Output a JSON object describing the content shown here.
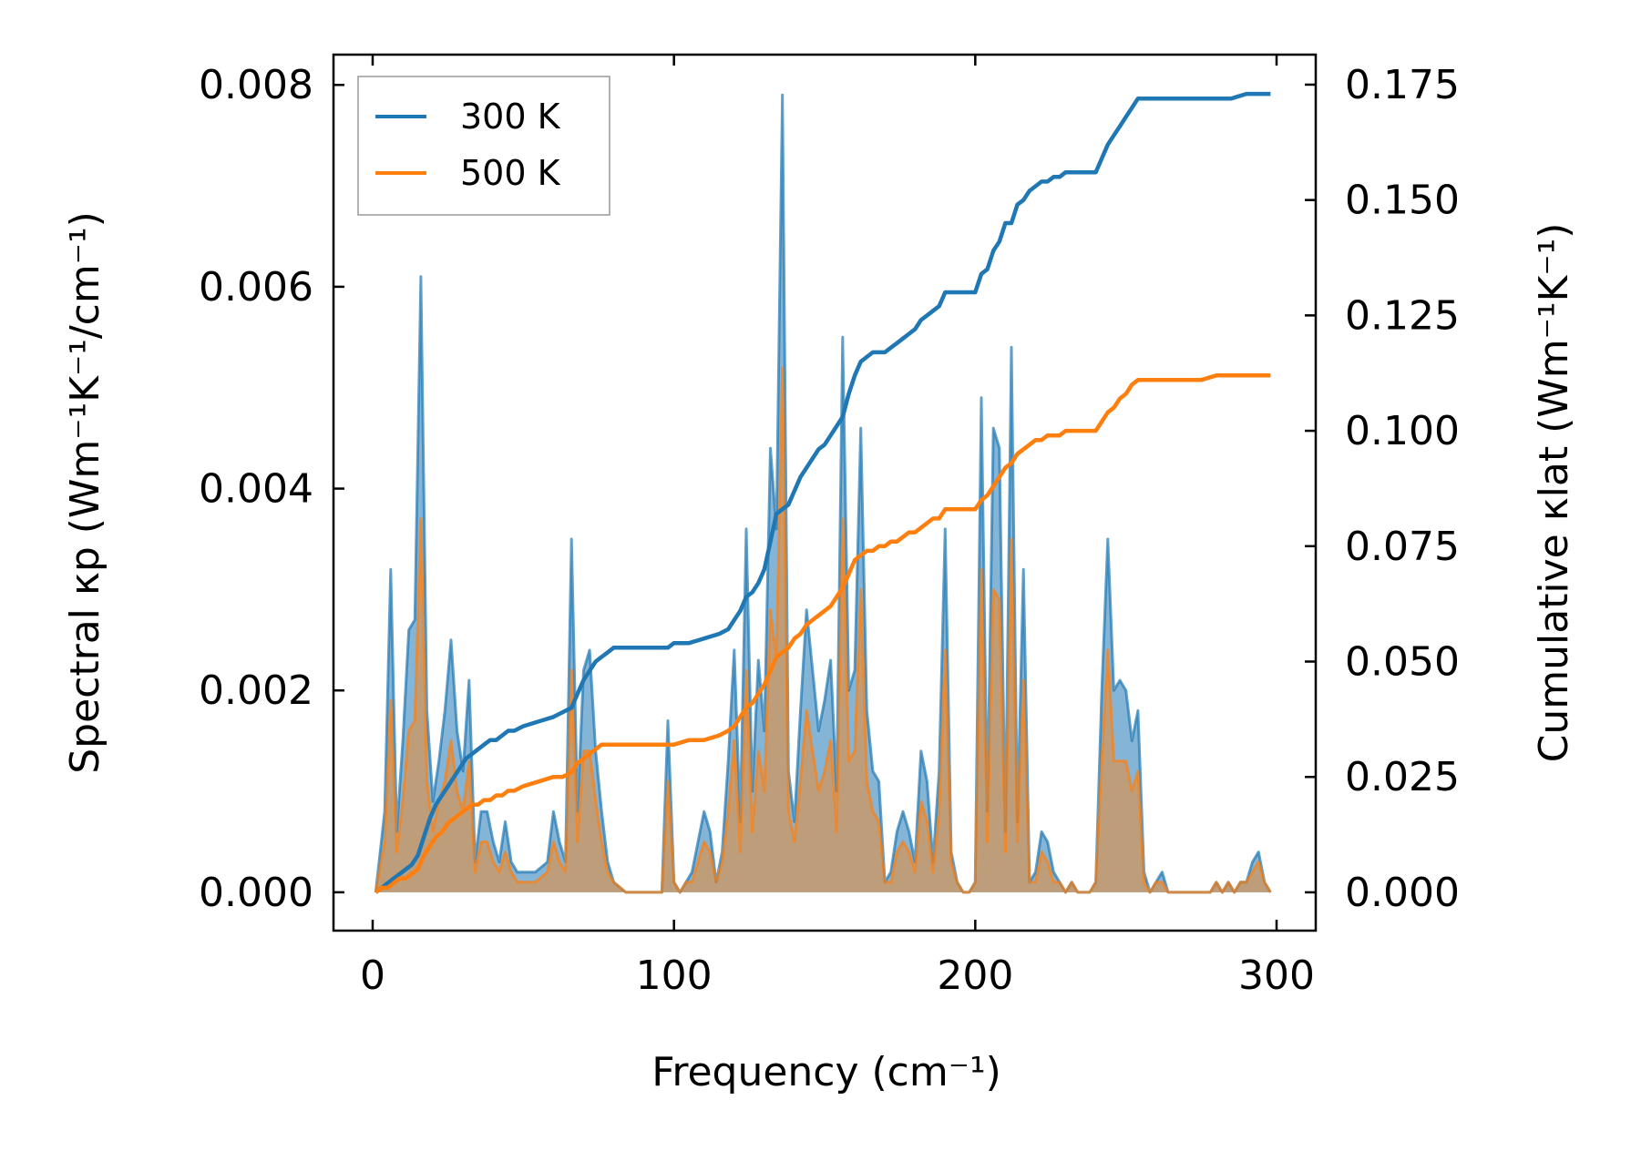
{
  "chart_data": {
    "type": "line",
    "xlabel": "Frequency (cm⁻¹)",
    "ylabel_left": "Spectral κp (Wm⁻¹K⁻¹/cm⁻¹)",
    "ylabel_right": "Cumulative κlat (Wm⁻¹K⁻¹)",
    "xlim": [
      -13,
      313
    ],
    "ylim_left": [
      -0.00038,
      0.0083
    ],
    "ylim_right": [
      -0.0083,
      0.1815
    ],
    "xticks": [
      0,
      100,
      200,
      300
    ],
    "xtick_labels": [
      "0",
      "100",
      "200",
      "300"
    ],
    "yticks_left": [
      0.0,
      0.002,
      0.004,
      0.006,
      0.008
    ],
    "ytick_labels_left": [
      "0.000",
      "0.002",
      "0.004",
      "0.006",
      "0.008"
    ],
    "yticks_right": [
      0.0,
      0.025,
      0.05,
      0.075,
      0.1,
      0.125,
      0.15,
      0.175
    ],
    "ytick_labels_right": [
      "0.000",
      "0.025",
      "0.050",
      "0.075",
      "0.100",
      "0.125",
      "0.150",
      "0.175"
    ],
    "legend": {
      "placement": "top-left",
      "entries": [
        "300 K",
        "500 K"
      ]
    },
    "colors": {
      "s300": "#1f77b4",
      "s500": "#ff7f0e",
      "fill500": "#c89a6a"
    },
    "grid": false,
    "spectral": [
      {
        "name": "300 K",
        "axis": "left",
        "fill": true,
        "x": [
          1,
          4,
          6,
          8,
          10,
          12,
          14,
          16,
          18,
          20,
          22,
          24,
          26,
          28,
          30,
          32,
          34,
          36,
          38,
          40,
          42,
          44,
          46,
          48,
          50,
          54,
          58,
          60,
          62,
          64,
          66,
          68,
          70,
          72,
          74,
          76,
          78,
          80,
          84,
          88,
          92,
          96,
          98,
          100,
          102,
          104,
          106,
          110,
          112,
          114,
          116,
          118,
          120,
          122,
          124,
          126,
          128,
          130,
          132,
          134,
          136,
          138,
          140,
          142,
          144,
          146,
          148,
          150,
          152,
          154,
          156,
          158,
          160,
          162,
          164,
          166,
          168,
          170,
          172,
          174,
          176,
          178,
          180,
          182,
          184,
          186,
          188,
          190,
          192,
          194,
          196,
          198,
          200,
          202,
          204,
          206,
          208,
          210,
          212,
          214,
          216,
          218,
          220,
          222,
          224,
          226,
          228,
          230,
          232,
          234,
          236,
          238,
          240,
          242,
          244,
          246,
          248,
          250,
          252,
          254,
          256,
          258,
          260,
          262,
          264,
          266,
          270,
          274,
          278,
          280,
          282,
          284,
          286,
          288,
          290,
          292,
          294,
          296,
          298
        ],
        "y": [
          0,
          0.0008,
          0.0032,
          0.0006,
          0.0015,
          0.0026,
          0.0027,
          0.0061,
          0.0018,
          0.0009,
          0.0013,
          0.0018,
          0.0025,
          0.0016,
          0.0012,
          0.0021,
          0.0003,
          0.0008,
          0.0008,
          0.0005,
          0.0003,
          0.0007,
          0.0003,
          0.0002,
          0.0002,
          0.0002,
          0.0003,
          0.0008,
          0.0005,
          0.0003,
          0.0035,
          0.0008,
          0.0022,
          0.0024,
          0.0014,
          0.0008,
          0.0003,
          0.0001,
          0,
          0,
          0,
          0,
          0.0017,
          0.0001,
          0,
          0.0001,
          0.0002,
          0.0008,
          0.0006,
          0.0001,
          0.0004,
          0.0013,
          0.0024,
          0.0007,
          0.0036,
          0.001,
          0.0023,
          0.0016,
          0.0044,
          0.0036,
          0.0079,
          0.0012,
          0.0007,
          0.0018,
          0.0028,
          0.0022,
          0.0016,
          0.0019,
          0.0023,
          0.001,
          0.0055,
          0.002,
          0.0022,
          0.0046,
          0.0018,
          0.0012,
          0.0011,
          0.0001,
          0.0002,
          0.0006,
          0.0008,
          0.0006,
          0.0003,
          0.0014,
          0.0011,
          0.0003,
          0.0012,
          0.0036,
          0.0004,
          0.0001,
          0,
          0,
          0.0001,
          0.0049,
          0.0008,
          0.0046,
          0.0044,
          0.0006,
          0.0054,
          0.0007,
          0.0032,
          0.0001,
          0.0002,
          0.0006,
          0.0005,
          0.0002,
          0.0001,
          0,
          0.0001,
          0,
          0,
          0,
          0.0001,
          0.002,
          0.0035,
          0.002,
          0.0021,
          0.002,
          0.0015,
          0.0018,
          0.0002,
          0,
          0.0001,
          0.0002,
          0,
          0,
          0,
          0,
          0,
          0.0001,
          0,
          0.0001,
          0,
          0.0001,
          0.0001,
          0.0003,
          0.0004,
          0.0001,
          0
        ]
      },
      {
        "name": "500 K",
        "axis": "left",
        "fill": true,
        "x": [
          1,
          4,
          6,
          8,
          10,
          12,
          14,
          16,
          18,
          20,
          22,
          24,
          26,
          28,
          30,
          32,
          34,
          36,
          38,
          40,
          42,
          44,
          46,
          48,
          50,
          54,
          58,
          60,
          62,
          64,
          66,
          68,
          70,
          72,
          74,
          76,
          78,
          80,
          84,
          88,
          92,
          96,
          98,
          100,
          102,
          104,
          106,
          110,
          112,
          114,
          116,
          118,
          120,
          122,
          124,
          126,
          128,
          130,
          132,
          134,
          136,
          138,
          140,
          142,
          144,
          146,
          148,
          150,
          152,
          154,
          156,
          158,
          160,
          162,
          164,
          166,
          168,
          170,
          172,
          174,
          176,
          178,
          180,
          182,
          184,
          186,
          188,
          190,
          192,
          194,
          196,
          198,
          200,
          202,
          204,
          206,
          208,
          210,
          212,
          214,
          216,
          218,
          220,
          222,
          224,
          226,
          228,
          230,
          232,
          234,
          236,
          238,
          240,
          242,
          244,
          246,
          248,
          250,
          252,
          254,
          256,
          258,
          260,
          262,
          264,
          266,
          270,
          274,
          278,
          280,
          282,
          284,
          286,
          288,
          290,
          292,
          294,
          296,
          298
        ],
        "y": [
          0,
          0.0005,
          0.0019,
          0.0004,
          0.0009,
          0.0016,
          0.0017,
          0.0037,
          0.0011,
          0.0006,
          0.0009,
          0.0011,
          0.0015,
          0.001,
          0.0008,
          0.0013,
          0.0002,
          0.0005,
          0.0005,
          0.0003,
          0.0002,
          0.0004,
          0.0002,
          0.0001,
          0.0001,
          0.0001,
          0.0002,
          0.0005,
          0.0003,
          0.0002,
          0.0022,
          0.0005,
          0.0014,
          0.0014,
          0.0009,
          0.0005,
          0.0002,
          0.0001,
          0,
          0,
          0,
          0,
          0.0011,
          0.0001,
          0,
          0.0001,
          0.0001,
          0.0005,
          0.0004,
          0.0001,
          0.0003,
          0.0008,
          0.0015,
          0.0004,
          0.0022,
          0.0006,
          0.0014,
          0.001,
          0.0028,
          0.0023,
          0.0052,
          0.0008,
          0.0005,
          0.0011,
          0.0018,
          0.0014,
          0.001,
          0.0012,
          0.0015,
          0.0006,
          0.0037,
          0.0013,
          0.0014,
          0.003,
          0.0011,
          0.0008,
          0.0007,
          0.0001,
          0.0001,
          0.0004,
          0.0005,
          0.0004,
          0.0002,
          0.0009,
          0.0007,
          0.0002,
          0.0008,
          0.0024,
          0.0003,
          0.0001,
          0,
          0,
          0.0001,
          0.0032,
          0.0005,
          0.003,
          0.0029,
          0.0004,
          0.0035,
          0.0005,
          0.0021,
          0.0001,
          0.0001,
          0.0004,
          0.0003,
          0.0001,
          0.0001,
          0,
          0.0001,
          0,
          0,
          0,
          0.0001,
          0.0013,
          0.0024,
          0.0013,
          0.0013,
          0.0013,
          0.001,
          0.0012,
          0.0001,
          0,
          0.0001,
          0.0001,
          0,
          0,
          0,
          0,
          0,
          0.0001,
          0,
          0.0001,
          0,
          0.0001,
          0.0001,
          0.0002,
          0.0003,
          0.0001,
          0
        ]
      }
    ],
    "cumulative": [
      {
        "name": "300 K",
        "axis": "right",
        "x": [
          1,
          3,
          5,
          7,
          9,
          11,
          13,
          15,
          17,
          19,
          21,
          23,
          25,
          27,
          29,
          31,
          33,
          35,
          37,
          39,
          41,
          43,
          45,
          47,
          50,
          55,
          60,
          63,
          66,
          68,
          70,
          72,
          74,
          76,
          78,
          80,
          82,
          85,
          90,
          95,
          98,
          100,
          105,
          110,
          115,
          118,
          120,
          122,
          124,
          126,
          128,
          130,
          132,
          134,
          136,
          138,
          140,
          142,
          144,
          146,
          148,
          150,
          152,
          154,
          156,
          158,
          160,
          162,
          164,
          166,
          168,
          170,
          172,
          174,
          176,
          178,
          180,
          182,
          184,
          186,
          188,
          190,
          192,
          194,
          196,
          198,
          200,
          202,
          204,
          206,
          208,
          210,
          212,
          214,
          216,
          218,
          220,
          222,
          224,
          226,
          228,
          230,
          232,
          234,
          236,
          238,
          240,
          242,
          244,
          246,
          248,
          250,
          252,
          254,
          256,
          258,
          260,
          262,
          265,
          270,
          275,
          280,
          285,
          290,
          295,
          298
        ],
        "y": [
          0,
          0.001,
          0.002,
          0.003,
          0.004,
          0.005,
          0.006,
          0.008,
          0.012,
          0.016,
          0.019,
          0.021,
          0.023,
          0.025,
          0.027,
          0.029,
          0.03,
          0.031,
          0.032,
          0.033,
          0.033,
          0.034,
          0.035,
          0.035,
          0.036,
          0.037,
          0.038,
          0.039,
          0.04,
          0.043,
          0.046,
          0.048,
          0.05,
          0.051,
          0.052,
          0.053,
          0.053,
          0.053,
          0.053,
          0.053,
          0.053,
          0.054,
          0.054,
          0.055,
          0.056,
          0.057,
          0.059,
          0.061,
          0.064,
          0.065,
          0.067,
          0.07,
          0.076,
          0.082,
          0.083,
          0.084,
          0.087,
          0.09,
          0.092,
          0.094,
          0.096,
          0.097,
          0.099,
          0.101,
          0.103,
          0.108,
          0.112,
          0.115,
          0.116,
          0.117,
          0.117,
          0.117,
          0.118,
          0.119,
          0.12,
          0.121,
          0.122,
          0.124,
          0.125,
          0.126,
          0.127,
          0.13,
          0.13,
          0.13,
          0.13,
          0.13,
          0.13,
          0.134,
          0.135,
          0.139,
          0.141,
          0.145,
          0.145,
          0.149,
          0.15,
          0.152,
          0.153,
          0.154,
          0.154,
          0.155,
          0.155,
          0.156,
          0.156,
          0.156,
          0.156,
          0.156,
          0.156,
          0.159,
          0.162,
          0.164,
          0.166,
          0.168,
          0.17,
          0.172,
          0.172,
          0.172,
          0.172,
          0.172,
          0.172,
          0.172,
          0.172,
          0.172,
          0.172,
          0.173,
          0.173,
          0.173
        ]
      },
      {
        "name": "500 K",
        "axis": "right",
        "x": [
          1,
          3,
          5,
          7,
          9,
          11,
          13,
          15,
          17,
          19,
          21,
          23,
          25,
          27,
          29,
          31,
          33,
          35,
          37,
          39,
          41,
          43,
          45,
          47,
          50,
          55,
          60,
          63,
          66,
          68,
          70,
          72,
          74,
          76,
          78,
          80,
          82,
          85,
          90,
          95,
          98,
          100,
          105,
          110,
          115,
          118,
          120,
          122,
          124,
          126,
          128,
          130,
          132,
          134,
          136,
          138,
          140,
          142,
          144,
          146,
          148,
          150,
          152,
          154,
          156,
          158,
          160,
          162,
          164,
          166,
          168,
          170,
          172,
          174,
          176,
          178,
          180,
          182,
          184,
          186,
          188,
          190,
          192,
          194,
          196,
          198,
          200,
          202,
          204,
          206,
          208,
          210,
          212,
          214,
          216,
          218,
          220,
          222,
          224,
          226,
          228,
          230,
          232,
          234,
          236,
          238,
          240,
          242,
          244,
          246,
          248,
          250,
          252,
          254,
          256,
          258,
          260,
          262,
          265,
          270,
          275,
          280,
          285,
          290,
          295,
          298
        ],
        "y": [
          0,
          0.001,
          0.001,
          0.002,
          0.003,
          0.003,
          0.004,
          0.005,
          0.008,
          0.01,
          0.012,
          0.013,
          0.015,
          0.016,
          0.017,
          0.018,
          0.019,
          0.019,
          0.02,
          0.02,
          0.021,
          0.021,
          0.022,
          0.022,
          0.023,
          0.024,
          0.025,
          0.025,
          0.026,
          0.028,
          0.029,
          0.03,
          0.031,
          0.032,
          0.032,
          0.032,
          0.032,
          0.032,
          0.032,
          0.032,
          0.032,
          0.032,
          0.033,
          0.033,
          0.034,
          0.035,
          0.036,
          0.038,
          0.04,
          0.041,
          0.043,
          0.045,
          0.048,
          0.051,
          0.052,
          0.053,
          0.055,
          0.056,
          0.058,
          0.059,
          0.06,
          0.061,
          0.062,
          0.064,
          0.066,
          0.069,
          0.072,
          0.073,
          0.074,
          0.074,
          0.075,
          0.075,
          0.076,
          0.076,
          0.077,
          0.078,
          0.078,
          0.079,
          0.08,
          0.081,
          0.081,
          0.083,
          0.083,
          0.083,
          0.083,
          0.083,
          0.083,
          0.085,
          0.086,
          0.088,
          0.09,
          0.092,
          0.093,
          0.095,
          0.096,
          0.097,
          0.098,
          0.098,
          0.099,
          0.099,
          0.099,
          0.1,
          0.1,
          0.1,
          0.1,
          0.1,
          0.1,
          0.102,
          0.104,
          0.105,
          0.107,
          0.108,
          0.11,
          0.111,
          0.111,
          0.111,
          0.111,
          0.111,
          0.111,
          0.111,
          0.111,
          0.112,
          0.112,
          0.112,
          0.112,
          0.112
        ]
      }
    ]
  }
}
